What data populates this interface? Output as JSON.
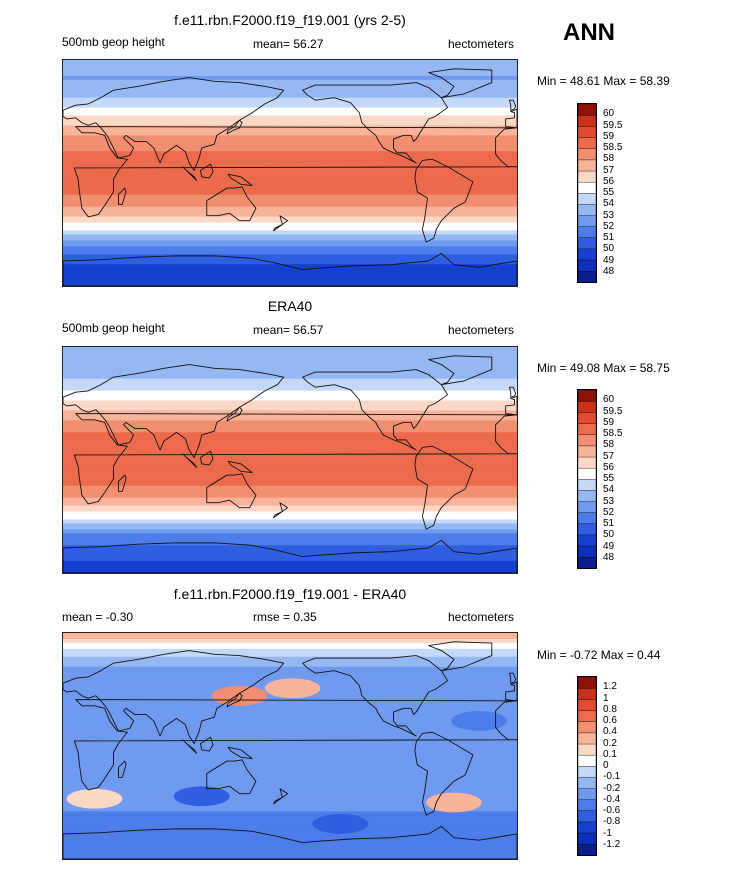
{
  "season": "ANN",
  "chart_data": [
    {
      "type": "heatmap",
      "title": "f.e11.rbn.F2000.f19_f19.001 (yrs 2-5)",
      "left_label": "500mb geop height",
      "center_label": "mean=  56.27",
      "units": "hectometers",
      "minmax": "Min =  48.61 Max =  58.39",
      "mean": 56.27,
      "min": 48.61,
      "max": 58.39,
      "levels": [
        "48",
        "49",
        "50",
        "51",
        "52",
        "53",
        "54",
        "55",
        "56",
        "57",
        "58",
        "58.5",
        "59",
        "59.5",
        "60"
      ],
      "colors": [
        "#0a1e8c",
        "#0f2fb8",
        "#1540d0",
        "#2f5fe0",
        "#4d7de8",
        "#6f9aef",
        "#95b8f3",
        "#c4d9f7",
        "#ffffff",
        "#fbd8c6",
        "#f7b49a",
        "#f28f70",
        "#ec6b4d",
        "#e24b2f",
        "#c8321a",
        "#8e1208"
      ],
      "lat_profile": [
        {
          "lat": 90,
          "v": 53.4
        },
        {
          "lat": 75,
          "v": 52.9
        },
        {
          "lat": 60,
          "v": 54.0
        },
        {
          "lat": 45,
          "v": 56.0
        },
        {
          "lat": 30,
          "v": 58.0
        },
        {
          "lat": 15,
          "v": 58.6
        },
        {
          "lat": 0,
          "v": 58.7
        },
        {
          "lat": -15,
          "v": 58.6
        },
        {
          "lat": -30,
          "v": 57.8
        },
        {
          "lat": -45,
          "v": 55.0
        },
        {
          "lat": -60,
          "v": 51.5
        },
        {
          "lat": -75,
          "v": 49.8
        },
        {
          "lat": -90,
          "v": 49.0
        }
      ]
    },
    {
      "type": "heatmap",
      "title": "ERA40",
      "left_label": "500mb geop height",
      "center_label": "mean=  56.57",
      "units": "hectometers",
      "minmax": "Min =  49.08 Max =  58.75",
      "mean": 56.57,
      "min": 49.08,
      "max": 58.75,
      "levels": [
        "48",
        "49",
        "50",
        "51",
        "52",
        "53",
        "54",
        "55",
        "56",
        "57",
        "58",
        "58.5",
        "59",
        "59.5",
        "60"
      ],
      "colors": [
        "#0a1e8c",
        "#0f2fb8",
        "#1540d0",
        "#2f5fe0",
        "#4d7de8",
        "#6f9aef",
        "#95b8f3",
        "#c4d9f7",
        "#ffffff",
        "#fbd8c6",
        "#f7b49a",
        "#f28f70",
        "#ec6b4d",
        "#e24b2f",
        "#c8321a",
        "#8e1208"
      ],
      "lat_profile": [
        {
          "lat": 90,
          "v": 53.6
        },
        {
          "lat": 75,
          "v": 53.2
        },
        {
          "lat": 60,
          "v": 54.3
        },
        {
          "lat": 45,
          "v": 56.3
        },
        {
          "lat": 30,
          "v": 58.3
        },
        {
          "lat": 15,
          "v": 58.7
        },
        {
          "lat": 0,
          "v": 58.75
        },
        {
          "lat": -15,
          "v": 58.7
        },
        {
          "lat": -30,
          "v": 58.1
        },
        {
          "lat": -45,
          "v": 55.4
        },
        {
          "lat": -60,
          "v": 51.8
        },
        {
          "lat": -75,
          "v": 50.3
        },
        {
          "lat": -90,
          "v": 49.5
        }
      ]
    },
    {
      "type": "heatmap",
      "title": "f.e11.rbn.F2000.f19_f19.001 - ERA40",
      "left_label": "mean =  -0.30",
      "center_label": "rmse =   0.35",
      "units": "hectometers",
      "minmax": "Min =  -0.72 Max =   0.44",
      "mean": -0.3,
      "rmse": 0.35,
      "min": -0.72,
      "max": 0.44,
      "levels": [
        "-1.2",
        "-1",
        "-0.8",
        "-0.6",
        "-0.4",
        "-0.2",
        "-0.1",
        "0",
        "0.1",
        "0.2",
        "0.4",
        "0.6",
        "0.8",
        "1",
        "1.2"
      ],
      "colors": [
        "#0a1e8c",
        "#0f2fb8",
        "#1540d0",
        "#2f5fe0",
        "#4d7de8",
        "#6f9aef",
        "#95b8f3",
        "#c4d9f7",
        "#ffffff",
        "#fbd8c6",
        "#f7b49a",
        "#f28f70",
        "#ec6b4d",
        "#e24b2f",
        "#c8321a",
        "#8e1208"
      ],
      "lat_profile": [
        {
          "lat": 90,
          "v": 0.3
        },
        {
          "lat": 75,
          "v": -0.05
        },
        {
          "lat": 60,
          "v": -0.25
        },
        {
          "lat": 45,
          "v": -0.3
        },
        {
          "lat": 30,
          "v": -0.35
        },
        {
          "lat": 15,
          "v": -0.3
        },
        {
          "lat": 0,
          "v": -0.3
        },
        {
          "lat": -15,
          "v": -0.3
        },
        {
          "lat": -30,
          "v": -0.25
        },
        {
          "lat": -45,
          "v": -0.35
        },
        {
          "lat": -60,
          "v": -0.45
        },
        {
          "lat": -75,
          "v": -0.5
        },
        {
          "lat": -90,
          "v": -0.45
        }
      ],
      "features": [
        {
          "lon": 140,
          "lat": 40,
          "v": 0.42
        },
        {
          "lon": 182,
          "lat": 46,
          "v": 0.35
        },
        {
          "lon": 310,
          "lat": -45,
          "v": 0.3
        },
        {
          "lon": 25,
          "lat": -42,
          "v": 0.1
        },
        {
          "lon": 110,
          "lat": -40,
          "v": -0.65
        },
        {
          "lon": 220,
          "lat": -62,
          "v": -0.7
        },
        {
          "lon": 330,
          "lat": 20,
          "v": -0.55
        }
      ]
    }
  ]
}
